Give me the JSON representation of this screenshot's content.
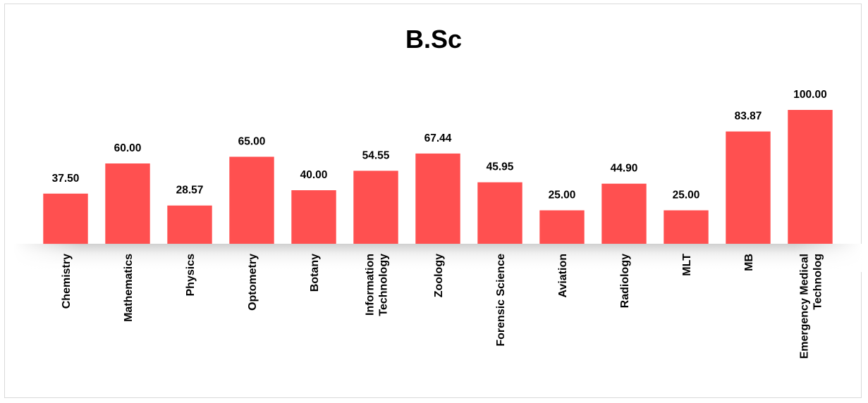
{
  "chart_data": {
    "type": "bar",
    "title": "B.Sc",
    "xlabel": "",
    "ylabel": "",
    "ylim": [
      0,
      100
    ],
    "grid": false,
    "legend": "none",
    "categories": [
      "Chemistry",
      "Mathematics",
      "Physics",
      "Optometry",
      "Botany",
      "Information Technology",
      "Zoology",
      "Forensic Science",
      "Aviation",
      "Radiology",
      "MLT",
      "MB",
      "Emergency Medical Technolog"
    ],
    "tick_label_lines": [
      [
        "Chemistry"
      ],
      [
        "Mathematics"
      ],
      [
        "Physics"
      ],
      [
        "Optometry"
      ],
      [
        "Botany"
      ],
      [
        "Information",
        "Technology"
      ],
      [
        "Zoology"
      ],
      [
        "Forensic Science"
      ],
      [
        "Aviation"
      ],
      [
        "Radiology"
      ],
      [
        "MLT"
      ],
      [
        "MB"
      ],
      [
        "Emergency Medical",
        "Technolog"
      ]
    ],
    "values": [
      37.5,
      60.0,
      28.57,
      65.0,
      40.0,
      54.55,
      67.44,
      45.95,
      25.0,
      44.9,
      25.0,
      83.87,
      100.0
    ],
    "data_labels": [
      "37.50",
      "60.00",
      "28.57",
      "65.00",
      "40.00",
      "54.55",
      "67.44",
      "45.95",
      "25.00",
      "44.90",
      "25.00",
      "83.87",
      "100.00"
    ],
    "colors": {
      "bar": "#ff5050",
      "text": "#000000",
      "border": "#d9d9d9"
    }
  }
}
